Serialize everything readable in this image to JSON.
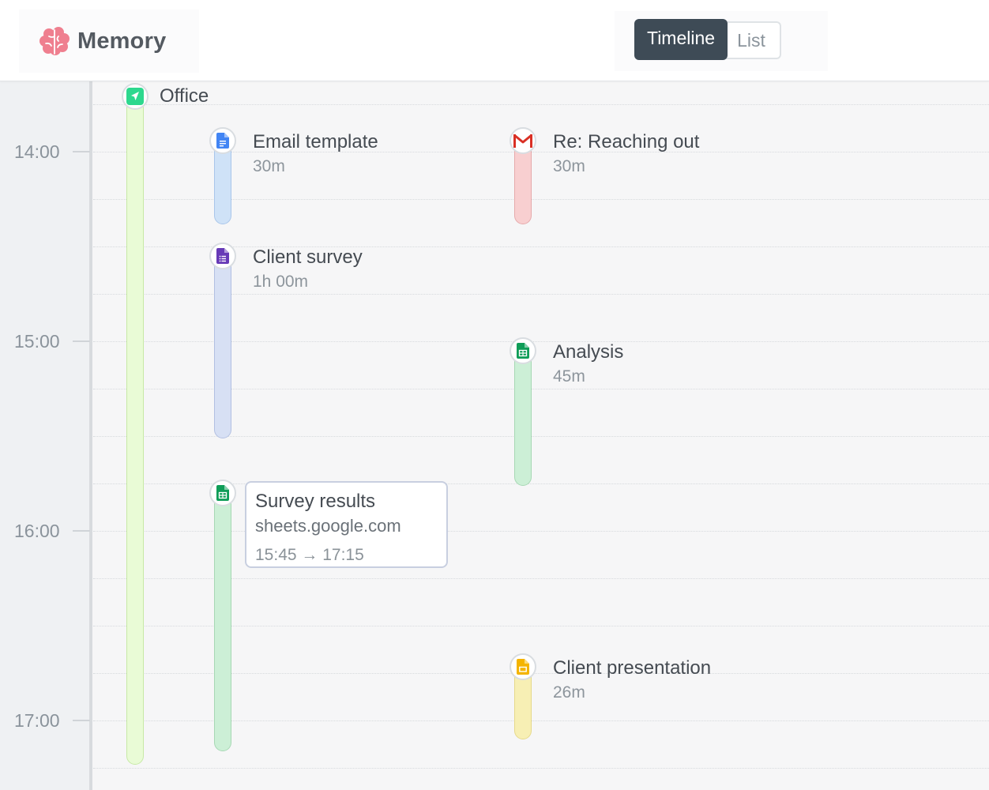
{
  "app": {
    "name": "Memory",
    "logo_icon": "brain-icon",
    "logo_color": "#ef7f8f"
  },
  "view_toggle": {
    "active": "Timeline",
    "inactive": "List"
  },
  "axis": {
    "hours": [
      "14:00",
      "15:00",
      "16:00",
      "17:00"
    ]
  },
  "location": {
    "label": "Office",
    "icon": "location-arrow-icon",
    "color": "#2dd88e"
  },
  "activities": {
    "email_template": {
      "title": "Email template",
      "duration": "30m",
      "icon": "google-docs-icon"
    },
    "reaching_out": {
      "title": "Re: Reaching out",
      "duration": "30m",
      "icon": "gmail-icon"
    },
    "client_survey": {
      "title": "Client survey",
      "duration": "1h 00m",
      "icon": "google-forms-icon"
    },
    "analysis": {
      "title": "Analysis",
      "duration": "45m",
      "icon": "google-sheets-icon"
    },
    "survey_results": {
      "icon": "google-sheets-icon"
    },
    "client_presentation": {
      "title": "Client presentation",
      "duration": "26m",
      "icon": "google-slides-icon"
    }
  },
  "tooltip": {
    "title": "Survey results",
    "domain": "sheets.google.com",
    "time_range": "15:45 → 17:15"
  },
  "colors": {
    "docs": "#cfe2f7",
    "gmail": "#f8cfd0",
    "forms": "#d7e0f4",
    "sheets": "#ccefd6",
    "slides": "#f7efb4",
    "location": "#e9fbd6"
  }
}
